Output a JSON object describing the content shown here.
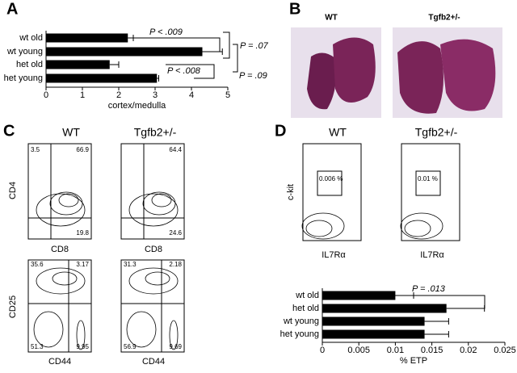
{
  "letters": [
    "A",
    "B",
    "C",
    "D"
  ],
  "chart_data": [
    {
      "type": "hbar",
      "categories": [
        "wt old",
        "wt young",
        "het old",
        "het young"
      ],
      "values": [
        2.25,
        4.3,
        1.75,
        3.05
      ],
      "errors": [
        0.15,
        0.55,
        0.25,
        0.05
      ],
      "color": "#000000",
      "xlim": [
        0,
        5
      ],
      "xticks": [
        0,
        1,
        2,
        3,
        4,
        5
      ],
      "xlabel": "cortex/medulla",
      "annotations": [
        "P < .009",
        "P < .008",
        "P = .07",
        "P = .09"
      ]
    },
    {
      "type": "hbar",
      "categories": [
        "wt old",
        "het old",
        "wt young",
        "het young"
      ],
      "values": [
        0.01,
        0.017,
        0.014,
        0.014
      ],
      "errors": [
        0.0025,
        0.0052,
        0.0033,
        0.0033
      ],
      "color": "#000000",
      "xlim": [
        0,
        0.025
      ],
      "xticks": [
        0,
        0.005,
        0.01,
        0.015,
        0.02,
        0.025
      ],
      "xlabel": "% ETP",
      "annotations": [
        "P = .013"
      ]
    }
  ],
  "histology": {
    "titles": [
      "WT",
      "Tgfb2+/-"
    ]
  },
  "panel_c": {
    "titles": [
      "WT",
      "Tgfb2+/-"
    ],
    "top": {
      "y_label": "CD4",
      "x_label": "CD8",
      "wt": [
        3.5,
        66.9,
        19.8
      ],
      "het": [
        64.4,
        24.6
      ]
    },
    "bottom": {
      "y_label": "CD25",
      "x_label": "CD44",
      "wt": [
        35.6,
        3.17,
        51.3,
        9.95
      ],
      "het": [
        31.3,
        2.18,
        56.9,
        9.69
      ]
    }
  },
  "panel_d": {
    "titles": [
      "WT",
      "Tgfb2+/-"
    ],
    "y_label": "c-kit",
    "x_label": "IL7Rα",
    "gates": [
      "0.006 %",
      "0.01 %"
    ]
  }
}
